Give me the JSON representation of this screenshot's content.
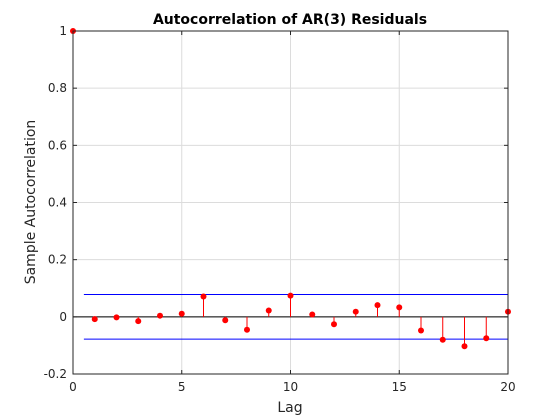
{
  "chart_data": {
    "type": "stem",
    "title": "Autocorrelation of AR(3) Residuals",
    "xlabel": "Lag",
    "ylabel": "Sample Autocorrelation",
    "xlim": [
      0,
      20
    ],
    "ylim": [
      -0.2,
      1
    ],
    "xticks": [
      "0",
      "5",
      "10",
      "15",
      "20"
    ],
    "yticks": [
      "-0.2",
      "0",
      "0.2",
      "0.4",
      "0.6",
      "0.8",
      "1"
    ],
    "grid": true,
    "lags": [
      0,
      1,
      2,
      3,
      4,
      5,
      6,
      7,
      8,
      9,
      10,
      11,
      12,
      13,
      14,
      15,
      16,
      17,
      18,
      19,
      20
    ],
    "values": [
      1.0,
      -0.008,
      -0.002,
      -0.015,
      0.004,
      0.011,
      0.071,
      -0.012,
      -0.045,
      0.022,
      0.074,
      0.008,
      -0.026,
      0.018,
      0.041,
      0.033,
      -0.048,
      -0.08,
      -0.103,
      -0.075,
      0.018
    ],
    "confidence_bounds": [
      0.078,
      -0.078
    ],
    "colors": {
      "stem": "#ff0000",
      "bounds": "#0000ff",
      "baseline": "#000000",
      "grid": "#dcdcdc"
    }
  }
}
